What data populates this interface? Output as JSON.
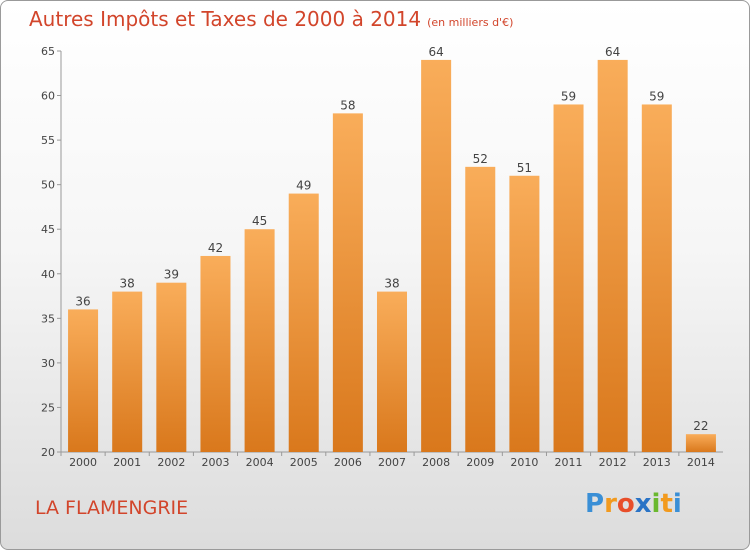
{
  "title": "Autres Impôts et Taxes de 2000 à 2014",
  "subtitle": "(en milliers d'€)",
  "place_name": "LA FLAMENGRIE",
  "brand": {
    "letters": [
      "P",
      "r",
      "o",
      "x",
      "i",
      "t",
      "i"
    ],
    "colors": [
      "#3a8fd6",
      "#f29a1e",
      "#e84e2a",
      "#2a73c6",
      "#6ab82e",
      "#f29a1e",
      "#3a8fd6"
    ]
  },
  "colors": {
    "bar_light": "#f9ad5a",
    "bar_dark": "#d9781c",
    "title": "#d2452b",
    "axis_text": "#444444"
  },
  "chart_data": {
    "type": "bar",
    "title": "Autres Impôts et Taxes de 2000 à 2014",
    "subtitle": "(en milliers d'€)",
    "categories": [
      "2000",
      "2001",
      "2002",
      "2003",
      "2004",
      "2005",
      "2006",
      "2007",
      "2008",
      "2009",
      "2010",
      "2011",
      "2012",
      "2013",
      "2014"
    ],
    "values": [
      36,
      38,
      39,
      42,
      45,
      49,
      58,
      38,
      64,
      52,
      51,
      59,
      64,
      59,
      22
    ],
    "ylim": [
      20,
      65
    ],
    "yticks": [
      20,
      25,
      30,
      35,
      40,
      45,
      50,
      55,
      60,
      65
    ],
    "xlabel": "",
    "ylabel": "",
    "grid": false,
    "data_labels": true
  }
}
